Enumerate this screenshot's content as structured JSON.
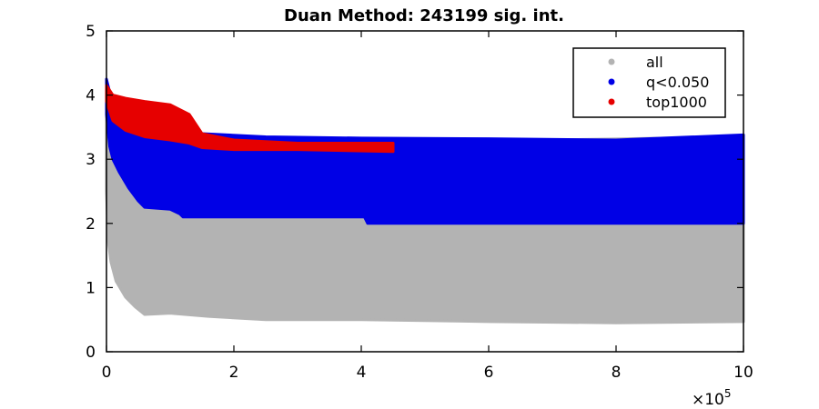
{
  "chart_data": {
    "type": "scatter",
    "title": "Duan Method: 243199 sig. int.",
    "xlabel": "",
    "ylabel": "",
    "x_multiplier_label": "×10",
    "x_multiplier_exponent": "5",
    "xlim": [
      0,
      10
    ],
    "ylim": [
      0,
      5
    ],
    "x_ticks": [
      0,
      2,
      4,
      6,
      8,
      10
    ],
    "y_ticks": [
      0,
      1,
      2,
      3,
      4,
      5
    ],
    "x_tick_labels": [
      "0",
      "2",
      "4",
      "6",
      "8",
      "10"
    ],
    "y_tick_labels": [
      "0",
      "1",
      "2",
      "3",
      "4",
      "5"
    ],
    "grid": false,
    "legend_position": "top-right",
    "series": [
      {
        "name": "all",
        "color": "#b3b3b3",
        "extent_x": [
          0,
          10
        ],
        "upper": [
          [
            0,
            4.05
          ],
          [
            0.03,
            3.95
          ],
          [
            0.1,
            3.8
          ],
          [
            0.3,
            3.6
          ],
          [
            0.6,
            3.45
          ],
          [
            1.0,
            3.35
          ],
          [
            2.0,
            3.35
          ],
          [
            4.0,
            3.3
          ],
          [
            7.0,
            3.3
          ],
          [
            10.0,
            3.35
          ]
        ],
        "lower": [
          [
            0,
            2.5
          ],
          [
            0.03,
            1.7
          ],
          [
            0.07,
            1.4
          ],
          [
            0.15,
            1.1
          ],
          [
            0.3,
            0.85
          ],
          [
            0.45,
            0.7
          ],
          [
            0.6,
            0.58
          ],
          [
            1.0,
            0.6
          ],
          [
            1.6,
            0.55
          ],
          [
            2.5,
            0.5
          ],
          [
            4.0,
            0.5
          ],
          [
            6.0,
            0.47
          ],
          [
            8.0,
            0.45
          ],
          [
            10.0,
            0.47
          ]
        ]
      },
      {
        "name": "q<0.050",
        "color": "#0000e6",
        "upper": [
          [
            0,
            4.25
          ],
          [
            0.05,
            4.05
          ],
          [
            0.2,
            3.8
          ],
          [
            0.6,
            3.55
          ],
          [
            1.0,
            3.45
          ],
          [
            1.5,
            3.4
          ],
          [
            2.5,
            3.35
          ],
          [
            4.0,
            3.33
          ],
          [
            6.0,
            3.32
          ],
          [
            8.0,
            3.3
          ],
          [
            10.0,
            3.38
          ]
        ],
        "lower": [
          [
            0,
            3.7
          ],
          [
            0.05,
            3.2
          ],
          [
            0.1,
            3.0
          ],
          [
            0.2,
            2.8
          ],
          [
            0.35,
            2.55
          ],
          [
            0.5,
            2.35
          ],
          [
            0.6,
            2.25
          ],
          [
            1.0,
            2.22
          ],
          [
            1.15,
            2.15
          ],
          [
            1.2,
            2.1
          ],
          [
            4.05,
            2.1
          ],
          [
            4.1,
            2.0
          ],
          [
            10.0,
            2.0
          ]
        ]
      },
      {
        "name": "top1000",
        "color": "#e60000",
        "upper": [
          [
            0,
            4.15
          ],
          [
            0.1,
            4.0
          ],
          [
            0.3,
            3.95
          ],
          [
            0.6,
            3.9
          ],
          [
            1.0,
            3.85
          ],
          [
            1.3,
            3.7
          ],
          [
            1.5,
            3.4
          ],
          [
            2.0,
            3.3
          ],
          [
            3.0,
            3.25
          ],
          [
            4.5,
            3.25
          ]
        ],
        "lower": [
          [
            0,
            3.9
          ],
          [
            0.1,
            3.6
          ],
          [
            0.3,
            3.45
          ],
          [
            0.6,
            3.35
          ],
          [
            1.0,
            3.3
          ],
          [
            1.3,
            3.25
          ],
          [
            1.5,
            3.18
          ],
          [
            2.0,
            3.15
          ],
          [
            3.0,
            3.15
          ],
          [
            4.5,
            3.12
          ]
        ]
      }
    ]
  }
}
